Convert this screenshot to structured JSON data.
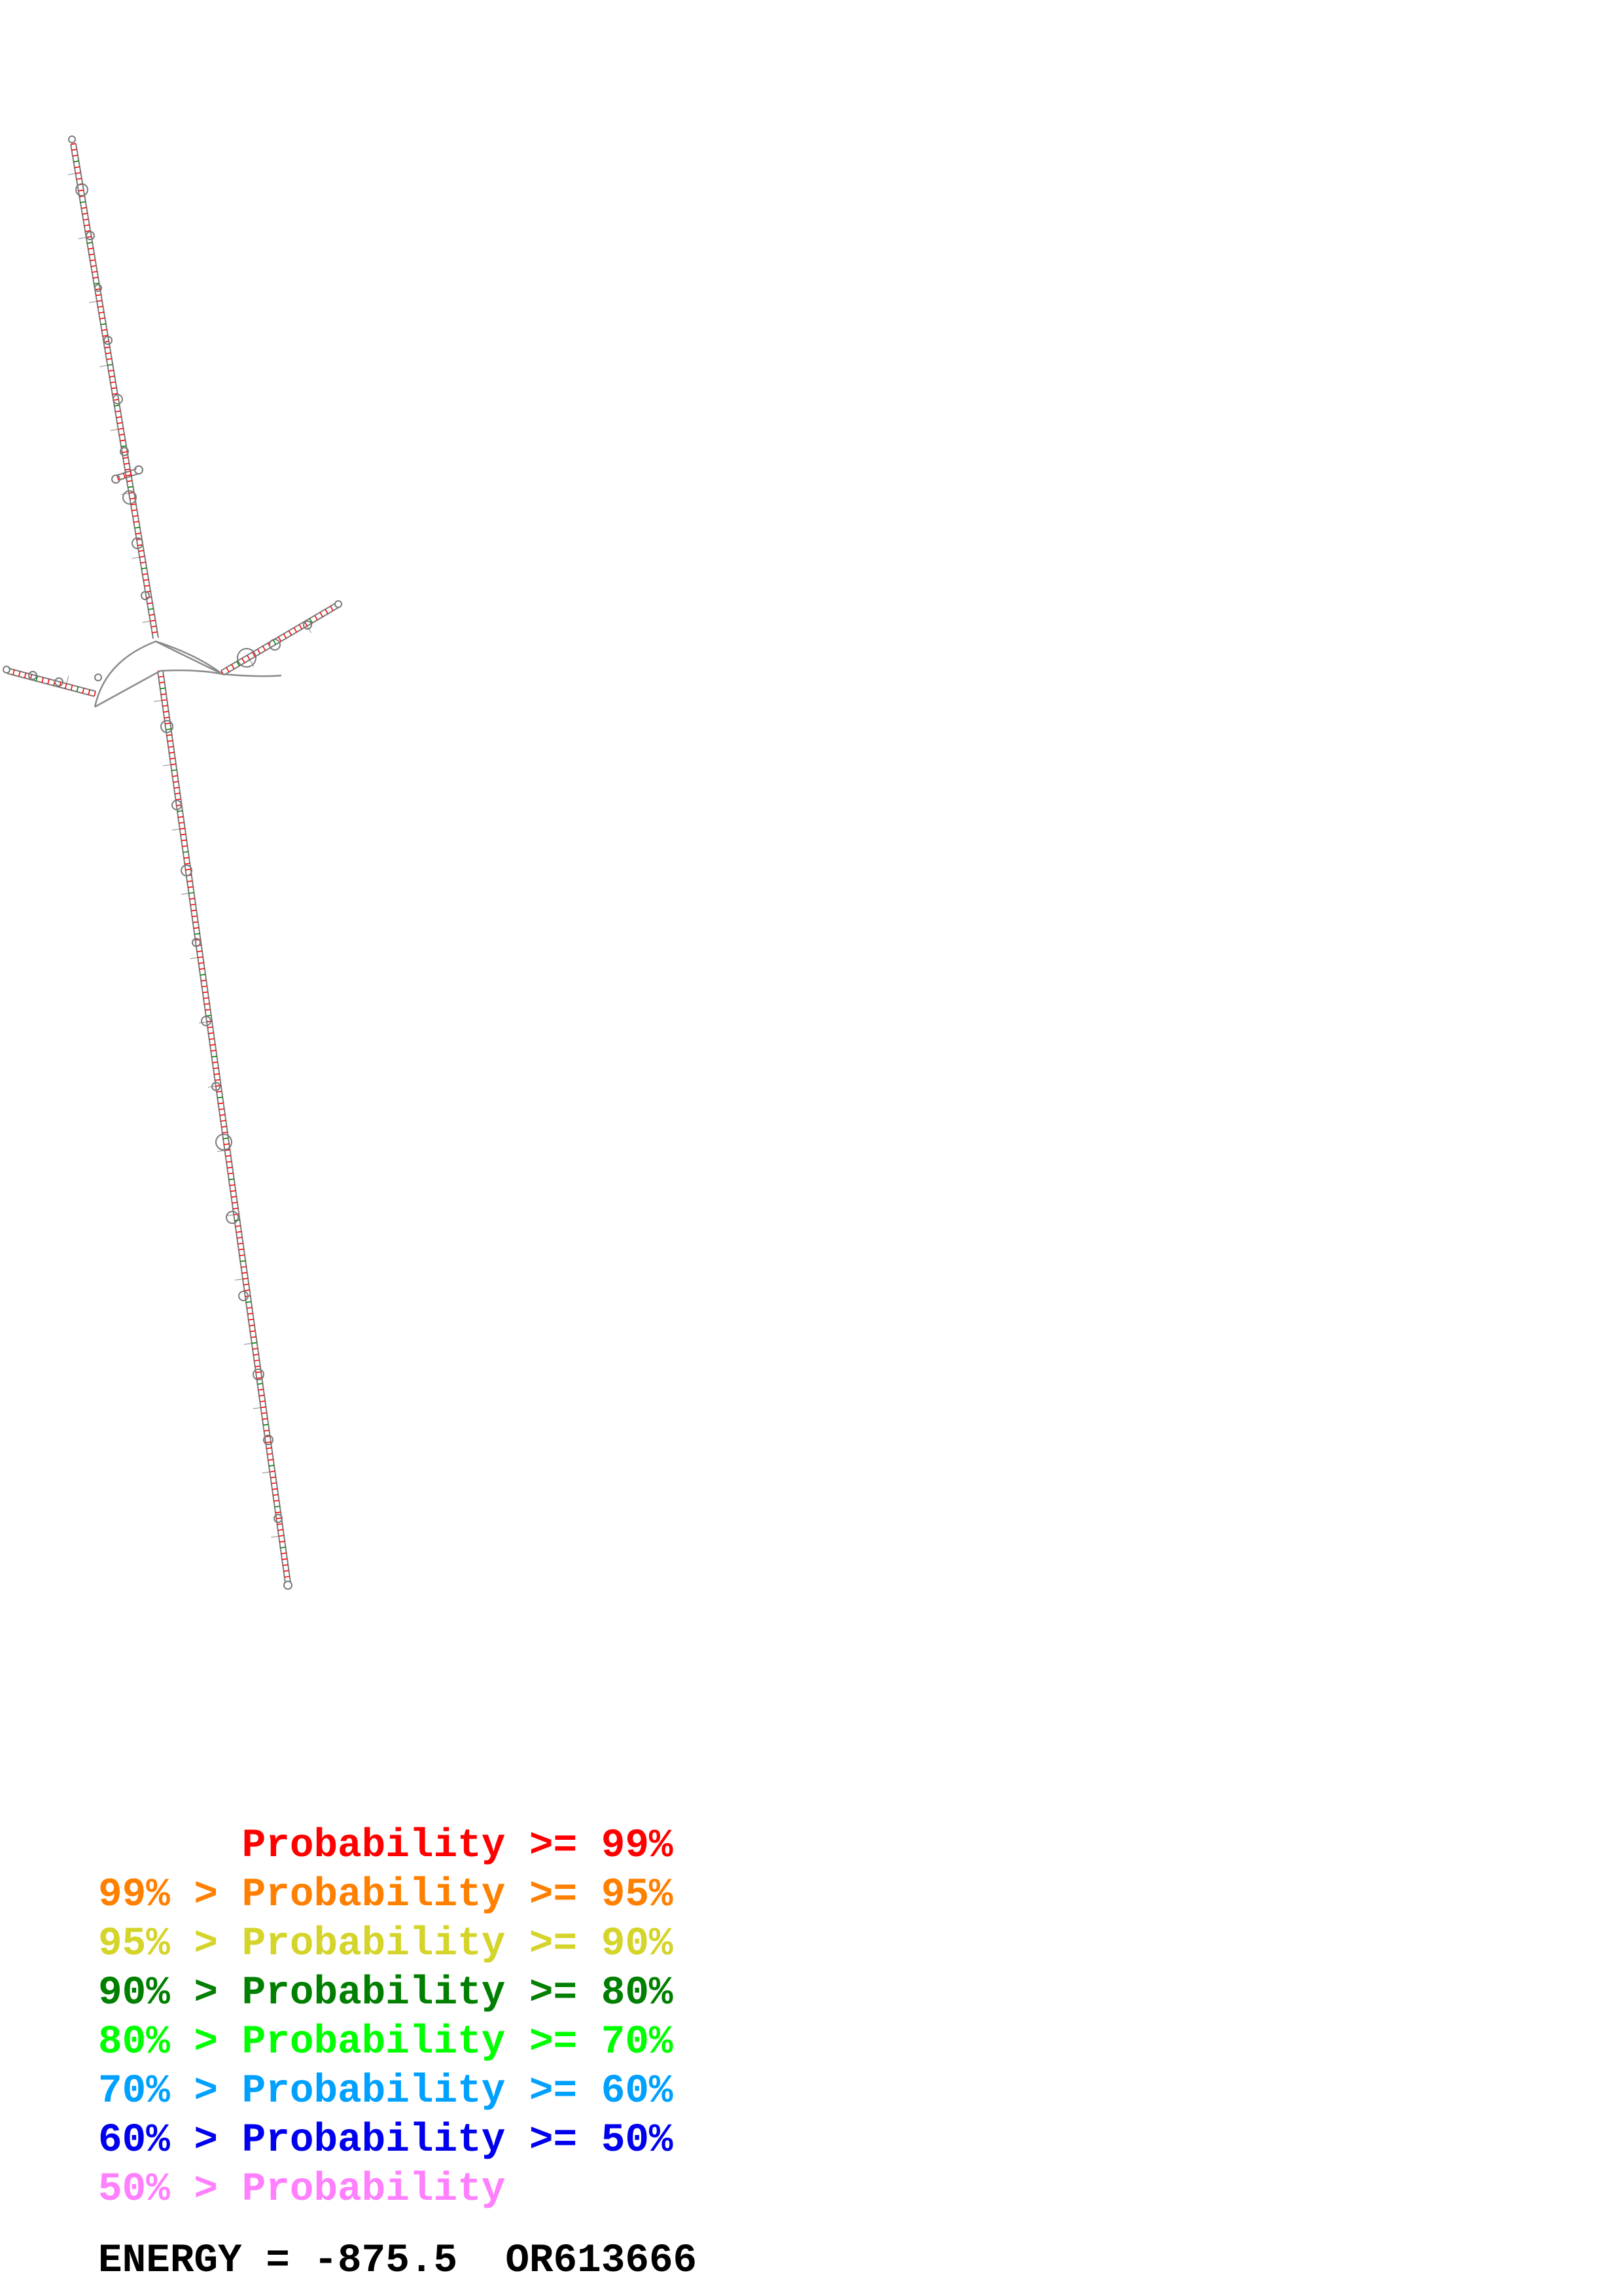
{
  "legend": [
    {
      "text": "      Probability >= 99%",
      "color": "#ff0000"
    },
    {
      "text": "99% > Probability >= 95%",
      "color": "#ff8000"
    },
    {
      "text": "95% > Probability >= 90%",
      "color": "#d4d42a"
    },
    {
      "text": "90% > Probability >= 80%",
      "color": "#007f00"
    },
    {
      "text": "80% > Probability >= 70%",
      "color": "#00ff00"
    },
    {
      "text": "70% > Probability >= 60%",
      "color": "#00a0ff"
    },
    {
      "text": "60% > Probability >= 50%",
      "color": "#0000ee"
    },
    {
      "text": "50% > Probability",
      "color": "#ff7fff"
    }
  ],
  "energy": {
    "label": "ENERGY = -875.5",
    "accession": "OR613666"
  },
  "colors": {
    "backbone": "#7a7a7a",
    "pair_high": "#ff0000",
    "pair_mid": "#007f00"
  }
}
